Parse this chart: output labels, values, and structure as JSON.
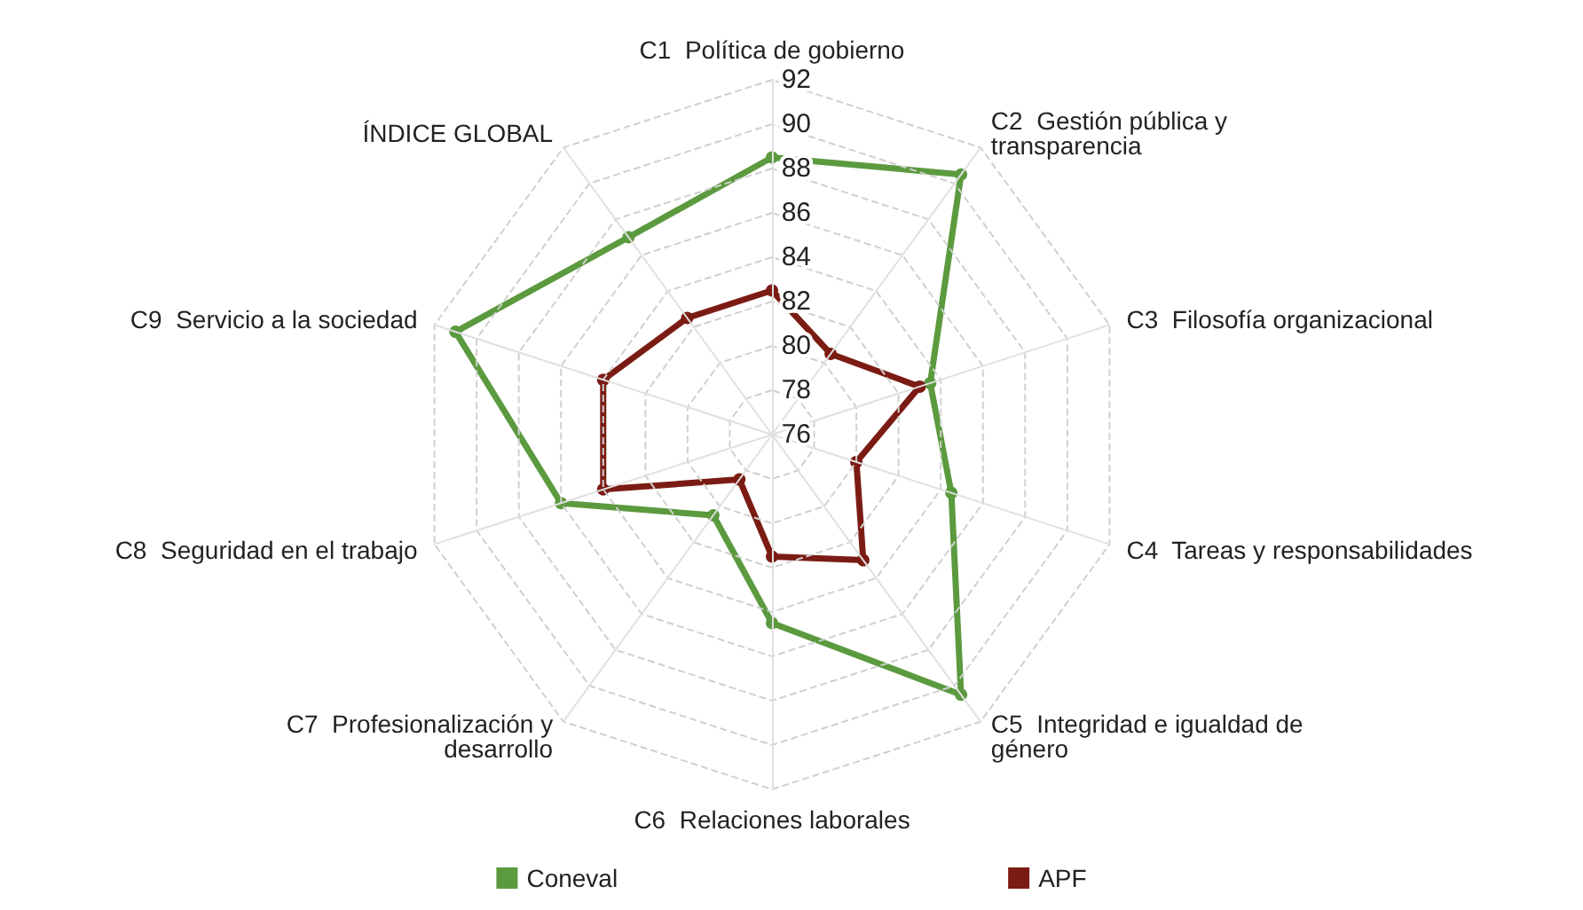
{
  "chart_data": {
    "type": "radar",
    "categories": [
      "C1  Política de gobierno",
      "C2  Gestión pública y\ntransparencia",
      "C3  Filosofía organizacional",
      "C4  Tareas y responsabilidades",
      "C5  Integridad e igualdad de\ngénero",
      "C6  Relaciones laborales",
      "C7  Profesionalización y\ndesarrollo",
      "C8  Seguridad en el trabajo",
      "C9  Servicio a la sociedad",
      "ÍNDICE GLOBAL"
    ],
    "series": [
      {
        "name": "Coneval",
        "color": "#5b9a3e",
        "values": [
          88.5,
          90.5,
          83.5,
          84.5,
          90.5,
          84.5,
          80.5,
          86,
          91,
          87
        ]
      },
      {
        "name": "APF",
        "color": "#7b1c14",
        "values": [
          82.5,
          80.5,
          83,
          80,
          83,
          81.5,
          78.5,
          84,
          84,
          82.5
        ]
      }
    ],
    "ylim": [
      76,
      92
    ],
    "yticks": [
      76,
      78,
      80,
      82,
      84,
      86,
      88,
      90,
      92
    ],
    "grid": true,
    "legend": "bottom",
    "marker": "circle"
  }
}
